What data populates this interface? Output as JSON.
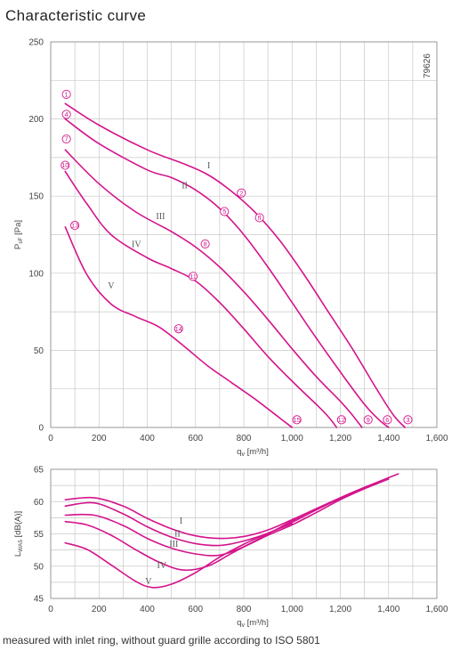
{
  "title": "Characteristic curve",
  "footer": "measured with inlet ring, without guard grille according to ISO 5801",
  "colors": {
    "curve": "#d4148c",
    "grid": "#c9c9c9"
  },
  "chart_data": [
    {
      "type": "line",
      "code": "79626",
      "xlabel": "q_v [m³/h]",
      "ylabel": "P_sF [Pa]",
      "xlim": [
        0,
        1600
      ],
      "ylim": [
        0,
        250
      ],
      "xticks": [
        "0",
        "200",
        "400",
        "600",
        "800",
        "1,000",
        "1,200",
        "1,400",
        "1,600"
      ],
      "yticks": [
        "0",
        "50",
        "100",
        "150",
        "200",
        "250"
      ],
      "series": [
        {
          "name": "I",
          "x": [
            60,
            200,
            400,
            550,
            650,
            750,
            850,
            950,
            1050,
            1150,
            1250,
            1350,
            1420,
            1468
          ],
          "y": [
            210,
            196,
            180,
            171,
            164,
            153,
            139,
            121,
            99,
            75,
            51,
            25,
            8,
            0
          ]
        },
        {
          "name": "II",
          "x": [
            60,
            200,
            400,
            500,
            600,
            700,
            800,
            900,
            1000,
            1100,
            1200,
            1300,
            1360,
            1400
          ],
          "y": [
            200,
            184,
            167,
            162,
            154,
            142,
            125,
            104,
            81,
            58,
            36,
            15,
            5,
            0
          ]
        },
        {
          "name": "III",
          "x": [
            60,
            200,
            350,
            500,
            600,
            700,
            800,
            900,
            1000,
            1100,
            1200,
            1250,
            1290
          ],
          "y": [
            180,
            158,
            140,
            127,
            117,
            104,
            88,
            70,
            51,
            33,
            17,
            8,
            0
          ]
        },
        {
          "name": "IV",
          "x": [
            60,
            150,
            250,
            400,
            500,
            600,
            700,
            800,
            900,
            1000,
            1100,
            1150,
            1185
          ],
          "y": [
            166,
            145,
            125,
            110,
            103,
            95,
            81,
            64,
            46,
            30,
            15,
            7,
            0
          ]
        },
        {
          "name": "V",
          "x": [
            60,
            150,
            250,
            350,
            450,
            550,
            650,
            750,
            850,
            950,
            1000
          ],
          "y": [
            130,
            99,
            80,
            72,
            65,
            53,
            40,
            29,
            18,
            6,
            0
          ]
        }
      ],
      "markers": [
        {
          "label": "1",
          "x": 65,
          "y": 216
        },
        {
          "label": "2",
          "x": 790,
          "y": 152
        },
        {
          "label": "3",
          "x": 1480,
          "y": 5
        },
        {
          "label": "4",
          "x": 65,
          "y": 203
        },
        {
          "label": "5",
          "x": 720,
          "y": 140
        },
        {
          "label": "6",
          "x": 1395,
          "y": 5
        },
        {
          "label": "7",
          "x": 65,
          "y": 187
        },
        {
          "label": "8",
          "x": 640,
          "y": 119
        },
        {
          "label": "9",
          "x": 1315,
          "y": 5
        },
        {
          "label": "10",
          "x": 60,
          "y": 170
        },
        {
          "label": "11",
          "x": 590,
          "y": 98
        },
        {
          "label": "12",
          "x": 1205,
          "y": 5
        },
        {
          "label": "13",
          "x": 100,
          "y": 131
        },
        {
          "label": "14",
          "x": 530,
          "y": 64
        },
        {
          "label": "15",
          "x": 1020,
          "y": 5
        },
        {
          "label": "fl",
          "x": 865,
          "y": 136
        }
      ],
      "series_labels": [
        {
          "label": "I",
          "x": 655,
          "y": 170
        },
        {
          "label": "II",
          "x": 555,
          "y": 157
        },
        {
          "label": "III",
          "x": 455,
          "y": 137
        },
        {
          "label": "IV",
          "x": 355,
          "y": 119
        },
        {
          "label": "V",
          "x": 250,
          "y": 92
        }
      ]
    },
    {
      "type": "line",
      "xlabel": "q_v [m³/h]",
      "ylabel": "L_WA5 [dB(A)]",
      "xlim": [
        0,
        1600
      ],
      "ylim": [
        45,
        65
      ],
      "xticks": [
        "0",
        "200",
        "400",
        "600",
        "800",
        "1,000",
        "1,200",
        "1,400",
        "1,600"
      ],
      "yticks": [
        "45",
        "50",
        "55",
        "60",
        "65"
      ],
      "series": [
        {
          "name": "I",
          "x": [
            60,
            180,
            300,
            400,
            500,
            600,
            700,
            800,
            900,
            1000,
            1100,
            1200,
            1300,
            1400,
            1440
          ],
          "y": [
            60.3,
            60.6,
            59.3,
            57.4,
            55.8,
            54.7,
            54.3,
            54.6,
            55.6,
            57.2,
            58.9,
            60.6,
            62.2,
            63.7,
            64.3
          ]
        },
        {
          "name": "II",
          "x": [
            60,
            180,
            300,
            400,
            500,
            600,
            700,
            800,
            900,
            1000,
            1100,
            1200,
            1300,
            1400
          ],
          "y": [
            59.3,
            59.8,
            58.1,
            56.1,
            54.5,
            53.5,
            53.2,
            53.9,
            55.1,
            56.8,
            58.7,
            60.5,
            62.0,
            63.5
          ]
        },
        {
          "name": "III",
          "x": [
            60,
            180,
            300,
            400,
            500,
            600,
            700,
            800,
            900,
            1000,
            1100,
            1200,
            1300
          ],
          "y": [
            57.9,
            57.9,
            56.3,
            54.3,
            52.8,
            51.9,
            51.7,
            53.0,
            54.8,
            56.4,
            58.3,
            60.3,
            62.0
          ]
        },
        {
          "name": "IV",
          "x": [
            60,
            150,
            250,
            350,
            450,
            550,
            650,
            750,
            850,
            950,
            1050,
            1150,
            1200
          ],
          "y": [
            56.9,
            56.4,
            54.8,
            52.6,
            50.6,
            49.4,
            50.0,
            52.0,
            54.0,
            56.0,
            58.0,
            59.7,
            60.5
          ]
        },
        {
          "name": "V",
          "x": [
            60,
            150,
            250,
            350,
            420,
            500,
            600,
            700,
            800,
            900,
            1000
          ],
          "y": [
            53.6,
            52.6,
            50.2,
            47.7,
            46.7,
            47.2,
            49.0,
            51.4,
            53.4,
            55.1,
            56.6
          ]
        }
      ],
      "series_labels": [
        {
          "label": "I",
          "x": 540,
          "y": 57.1
        },
        {
          "label": "II",
          "x": 525,
          "y": 55.1
        },
        {
          "label": "III",
          "x": 510,
          "y": 53.5
        },
        {
          "label": "IV",
          "x": 460,
          "y": 50.2
        },
        {
          "label": "V",
          "x": 405,
          "y": 47.7
        }
      ]
    }
  ]
}
